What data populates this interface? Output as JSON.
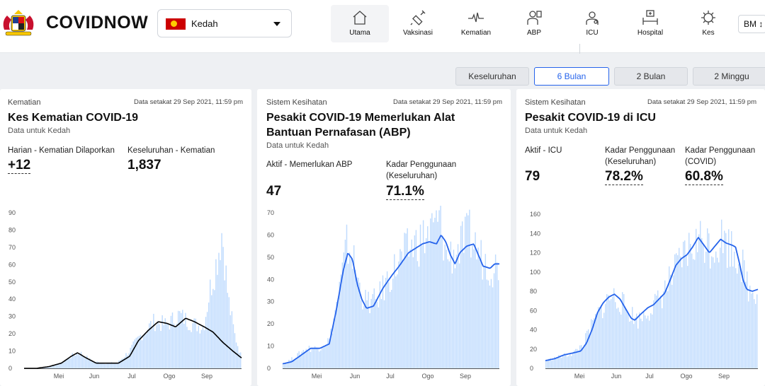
{
  "header": {
    "brand": "COVIDNOW",
    "state": "Kedah",
    "lang": "BM ↕",
    "nav": [
      {
        "label": "Utama",
        "icon": "home-icon",
        "active": true
      },
      {
        "label": "Vaksinasi",
        "icon": "syringe-icon",
        "active": false
      },
      {
        "label": "Kematian",
        "icon": "heartbeat-icon",
        "active": false
      },
      {
        "label": "ABP",
        "icon": "ventilator-icon",
        "active": false
      },
      {
        "label": "ICU",
        "icon": "icu-doctor-icon",
        "active": false
      },
      {
        "label": "Hospital",
        "icon": "hospital-bed-icon",
        "active": false
      },
      {
        "label": "Kes",
        "icon": "virus-icon",
        "active": false
      }
    ]
  },
  "tabs": [
    {
      "label": "Keseluruhan",
      "active": false
    },
    {
      "label": "6 Bulan",
      "active": true
    },
    {
      "label": "2 Bulan",
      "active": false
    },
    {
      "label": "2 Minggu",
      "active": false
    }
  ],
  "colors": {
    "accent": "#2563eb",
    "bar": "#bfdbfe",
    "line_blue": "#2563eb",
    "line_black": "#000000"
  },
  "cards": [
    {
      "category": "Kematian",
      "stamp": "Data setakat 29 Sep 2021, 11:59 pm",
      "title": "Kes Kematian COVID-19",
      "subtitle": "Data untuk Kedah",
      "stats": [
        {
          "label": "Harian - Kematian Dilaporkan",
          "value": "+12"
        },
        {
          "label": "Keseluruhan - Kematian",
          "value": "1,837"
        }
      ]
    },
    {
      "category": "Sistem Kesihatan",
      "stamp": "Data setakat 29 Sep 2021, 11:59 pm",
      "title_line1": "Pesakit COVID-19 Memerlukan Alat",
      "title_line2": "Bantuan Pernafasan (ABP)",
      "subtitle": "Data untuk Kedah",
      "stats": [
        {
          "label": "Aktif - Memerlukan ABP",
          "value": "47"
        },
        {
          "label_line1": "Kadar Penggunaan",
          "label_line2": "(Keseluruhan)",
          "value": "71.1%"
        }
      ]
    },
    {
      "category": "Sistem Kesihatan",
      "stamp": "Data setakat 29 Sep 2021, 11:59 pm",
      "title": "Pesakit COVID-19 di ICU",
      "subtitle": "Data untuk Kedah",
      "stats": [
        {
          "label": "Aktif - ICU",
          "value": "79"
        },
        {
          "label_line1": "Kadar Penggunaan",
          "label_line2": "(Keseluruhan)",
          "value": "78.2%"
        },
        {
          "label_line1": "Kadar Penggunaan",
          "label_line2": "(COVID)",
          "value": "60.8%"
        }
      ]
    }
  ],
  "chart_data": [
    {
      "type": "bar",
      "months": [
        "Mei",
        "Jun",
        "Jul",
        "Ogo",
        "Sep"
      ],
      "yticks": [
        0,
        10,
        20,
        30,
        40,
        50,
        60,
        70,
        80,
        90
      ],
      "ylim": [
        0,
        90
      ],
      "bars_knots": [
        [
          0,
          0
        ],
        [
          10,
          0
        ],
        [
          20,
          1
        ],
        [
          30,
          3
        ],
        [
          40,
          8
        ],
        [
          45,
          9
        ],
        [
          55,
          4
        ],
        [
          65,
          3
        ],
        [
          75,
          3
        ],
        [
          85,
          10
        ],
        [
          95,
          20
        ],
        [
          105,
          27
        ],
        [
          115,
          25
        ],
        [
          125,
          31
        ],
        [
          135,
          26
        ],
        [
          145,
          24
        ],
        [
          150,
          45
        ],
        [
          155,
          60
        ],
        [
          160,
          80
        ],
        [
          165,
          40
        ],
        [
          170,
          20
        ],
        [
          175,
          8
        ]
      ],
      "line_knots": [
        [
          0,
          0
        ],
        [
          10,
          0
        ],
        [
          20,
          1
        ],
        [
          30,
          3
        ],
        [
          38,
          7
        ],
        [
          43,
          9
        ],
        [
          50,
          6
        ],
        [
          58,
          3
        ],
        [
          66,
          3
        ],
        [
          76,
          3
        ],
        [
          85,
          7
        ],
        [
          92,
          16
        ],
        [
          100,
          22
        ],
        [
          108,
          27
        ],
        [
          115,
          26
        ],
        [
          122,
          24
        ],
        [
          130,
          29
        ],
        [
          137,
          27
        ],
        [
          145,
          24
        ],
        [
          152,
          21
        ],
        [
          160,
          15
        ],
        [
          168,
          10
        ],
        [
          175,
          6
        ]
      ]
    },
    {
      "type": "bar",
      "months": [
        "Mei",
        "Jun",
        "Jul",
        "Ogo",
        "Sep"
      ],
      "yticks": [
        0,
        10,
        20,
        30,
        40,
        50,
        60,
        70
      ],
      "ylim": [
        0,
        70
      ],
      "bars_knots": [
        [
          0,
          2
        ],
        [
          10,
          5
        ],
        [
          20,
          9
        ],
        [
          30,
          9
        ],
        [
          40,
          13
        ],
        [
          50,
          40
        ],
        [
          55,
          56
        ],
        [
          60,
          50
        ],
        [
          65,
          38
        ],
        [
          70,
          30
        ],
        [
          80,
          30
        ],
        [
          90,
          40
        ],
        [
          100,
          48
        ],
        [
          110,
          55
        ],
        [
          120,
          58
        ],
        [
          130,
          63
        ],
        [
          135,
          68
        ],
        [
          140,
          50
        ],
        [
          150,
          53
        ],
        [
          160,
          60
        ],
        [
          165,
          55
        ],
        [
          170,
          50
        ],
        [
          175,
          48
        ],
        [
          180,
          45
        ],
        [
          185,
          47
        ]
      ],
      "line_knots": [
        [
          0,
          2
        ],
        [
          8,
          3
        ],
        [
          16,
          6
        ],
        [
          24,
          9
        ],
        [
          32,
          9
        ],
        [
          40,
          11
        ],
        [
          46,
          26
        ],
        [
          52,
          44
        ],
        [
          56,
          52
        ],
        [
          60,
          49
        ],
        [
          64,
          38
        ],
        [
          68,
          31
        ],
        [
          72,
          27
        ],
        [
          78,
          28
        ],
        [
          86,
          36
        ],
        [
          94,
          42
        ],
        [
          100,
          46
        ],
        [
          108,
          52
        ],
        [
          114,
          54
        ],
        [
          120,
          56
        ],
        [
          126,
          57
        ],
        [
          132,
          56
        ],
        [
          136,
          60
        ],
        [
          140,
          57
        ],
        [
          144,
          51
        ],
        [
          148,
          47
        ],
        [
          152,
          52
        ],
        [
          158,
          55
        ],
        [
          164,
          56
        ],
        [
          168,
          51
        ],
        [
          172,
          46
        ],
        [
          178,
          45
        ],
        [
          182,
          47
        ],
        [
          186,
          47
        ]
      ]
    },
    {
      "type": "bar",
      "months": [
        "Mei",
        "Jun",
        "Jul",
        "Ogo",
        "Sep"
      ],
      "yticks": [
        0,
        20,
        40,
        60,
        80,
        100,
        120,
        140,
        160
      ],
      "ylim": [
        0,
        160
      ],
      "bars_knots": [
        [
          0,
          8
        ],
        [
          15,
          12
        ],
        [
          30,
          16
        ],
        [
          40,
          25
        ],
        [
          50,
          45
        ],
        [
          60,
          62
        ],
        [
          70,
          75
        ],
        [
          80,
          70
        ],
        [
          90,
          58
        ],
        [
          100,
          50
        ],
        [
          110,
          60
        ],
        [
          120,
          68
        ],
        [
          130,
          85
        ],
        [
          140,
          100
        ],
        [
          150,
          118
        ],
        [
          160,
          128
        ],
        [
          170,
          135
        ],
        [
          180,
          125
        ],
        [
          190,
          135
        ],
        [
          200,
          125
        ],
        [
          210,
          115
        ],
        [
          215,
          95
        ],
        [
          220,
          80
        ],
        [
          228,
          82
        ]
      ],
      "line_knots": [
        [
          0,
          8
        ],
        [
          10,
          10
        ],
        [
          20,
          14
        ],
        [
          30,
          16
        ],
        [
          38,
          18
        ],
        [
          44,
          26
        ],
        [
          50,
          40
        ],
        [
          56,
          58
        ],
        [
          62,
          68
        ],
        [
          68,
          74
        ],
        [
          74,
          77
        ],
        [
          80,
          72
        ],
        [
          86,
          62
        ],
        [
          92,
          52
        ],
        [
          96,
          50
        ],
        [
          102,
          56
        ],
        [
          110,
          63
        ],
        [
          116,
          66
        ],
        [
          122,
          72
        ],
        [
          128,
          78
        ],
        [
          134,
          92
        ],
        [
          140,
          107
        ],
        [
          146,
          114
        ],
        [
          152,
          118
        ],
        [
          158,
          126
        ],
        [
          164,
          136
        ],
        [
          170,
          128
        ],
        [
          176,
          120
        ],
        [
          182,
          127
        ],
        [
          188,
          134
        ],
        [
          194,
          130
        ],
        [
          200,
          128
        ],
        [
          204,
          126
        ],
        [
          208,
          110
        ],
        [
          212,
          92
        ],
        [
          216,
          82
        ],
        [
          222,
          80
        ],
        [
          228,
          82
        ]
      ]
    }
  ]
}
